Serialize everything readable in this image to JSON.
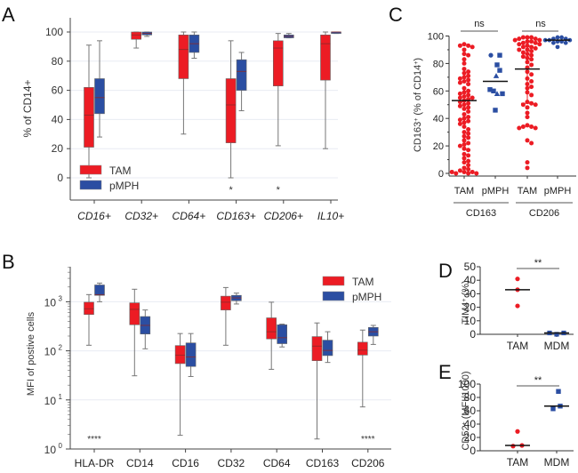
{
  "colors": {
    "tam": "#ec1c24",
    "pmph": "#2b4ea2",
    "grid": "#e8ebf3",
    "whisker": "#777777"
  },
  "chart_data": [
    {
      "panel": "A",
      "type": "box",
      "ylabel": "% of CD14+",
      "ylim": [
        -15,
        110
      ],
      "yticks": [
        0,
        20,
        40,
        60,
        80,
        100
      ],
      "grid": true,
      "legend": {
        "position": "bottom-left",
        "entries": [
          "TAM",
          "pMPH"
        ]
      },
      "categories": [
        "CD16+",
        "CD32+",
        "CD64+",
        "CD163+",
        "CD206+",
        "IL10+"
      ],
      "series": [
        {
          "name": "TAM",
          "boxes": [
            {
              "min": 0,
              "q1": 21,
              "median": 43,
              "q3": 62,
              "max": 91
            },
            {
              "min": 89,
              "q1": 95,
              "median": 98,
              "q3": 100,
              "max": 100
            },
            {
              "min": 30,
              "q1": 68,
              "median": 88,
              "q3": 98,
              "max": 100
            },
            {
              "min": 0,
              "q1": 24,
              "median": 50,
              "q3": 68,
              "max": 94
            },
            {
              "min": 22,
              "q1": 63,
              "median": 89,
              "q3": 94,
              "max": 99
            },
            {
              "min": 20,
              "q1": 67,
              "median": 92,
              "q3": 98,
              "max": 100
            }
          ]
        },
        {
          "name": "pMPH",
          "boxes": [
            {
              "min": 28,
              "q1": 44,
              "median": 55,
              "q3": 68,
              "max": 94
            },
            {
              "min": 97,
              "q1": 98,
              "median": 99,
              "q3": 100,
              "max": 100
            },
            {
              "min": 82,
              "q1": 86,
              "median": 92,
              "q3": 98,
              "max": 100
            },
            {
              "min": 46,
              "q1": 60,
              "median": 73,
              "q3": 81,
              "max": 86
            },
            {
              "min": 96,
              "q1": 96,
              "median": 97,
              "q3": 98,
              "max": 99
            },
            {
              "min": 99,
              "q1": 99,
              "median": 100,
              "q3": 100,
              "max": 100
            }
          ]
        }
      ],
      "annotations": [
        {
          "category": "CD163+",
          "text": "*"
        },
        {
          "category": "CD206+",
          "text": "*"
        }
      ]
    },
    {
      "panel": "B",
      "type": "box",
      "yscale": "log",
      "ylabel": "MFI of postive cells",
      "ylim": [
        1,
        5000
      ],
      "yticks": [
        {
          "value": 1,
          "base": "10",
          "exp": "0"
        },
        {
          "value": 10,
          "base": "10",
          "exp": "1"
        },
        {
          "value": 100,
          "base": "10",
          "exp": "2"
        },
        {
          "value": 1000,
          "base": "10",
          "exp": "3"
        }
      ],
      "grid": true,
      "legend": {
        "position": "top-right",
        "entries": [
          "TAM",
          "pMPH"
        ]
      },
      "categories": [
        "HLA-DR",
        "CD14",
        "CD16",
        "CD32",
        "CD64",
        "CD163",
        "CD206"
      ],
      "series": [
        {
          "name": "TAM",
          "boxes": [
            {
              "min": 130,
              "q1": 550,
              "median": 720,
              "q3": 980,
              "max": 1400
            },
            {
              "min": 31,
              "q1": 340,
              "median": 700,
              "q3": 950,
              "max": 1800
            },
            {
              "min": 1.9,
              "q1": 55,
              "median": 82,
              "q3": 128,
              "max": 225
            },
            {
              "min": 130,
              "q1": 680,
              "median": 980,
              "q3": 1300,
              "max": 1950
            },
            {
              "min": 42,
              "q1": 175,
              "median": 245,
              "q3": 470,
              "max": 980
            },
            {
              "min": 1.6,
              "q1": 63,
              "median": 125,
              "q3": 195,
              "max": 370
            },
            {
              "min": 7.2,
              "q1": 82,
              "median": 103,
              "q3": 150,
              "max": 265
            }
          ]
        },
        {
          "name": "pMPH",
          "boxes": [
            {
              "min": 1000,
              "q1": 1350,
              "median": 1400,
              "q3": 2200,
              "max": 2400
            },
            {
              "min": 110,
              "q1": 220,
              "median": 330,
              "q3": 500,
              "max": 680
            },
            {
              "min": 30,
              "q1": 48,
              "median": 75,
              "q3": 145,
              "max": 225
            },
            {
              "min": 900,
              "q1": 1050,
              "median": 1200,
              "q3": 1350,
              "max": 1500
            },
            {
              "min": 120,
              "q1": 140,
              "median": 185,
              "q3": 340,
              "max": 350
            },
            {
              "min": 58,
              "q1": 80,
              "median": 102,
              "q3": 165,
              "max": 245
            },
            {
              "min": 135,
              "q1": 200,
              "median": 245,
              "q3": 300,
              "max": 330
            }
          ]
        }
      ],
      "annotations": [
        {
          "category": "HLA-DR",
          "text": "****"
        },
        {
          "category": "CD206",
          "text": "****"
        }
      ]
    },
    {
      "panel": "C",
      "type": "scatter",
      "ylabel": "CD163+ (% of CD14+)",
      "ylim": [
        0,
        100
      ],
      "yticks": [
        0,
        20,
        40,
        60,
        80,
        100
      ],
      "categories": [
        "TAM",
        "pMPH",
        "TAM",
        "pMPH"
      ],
      "groups": [
        "CD163",
        "CD206"
      ],
      "comparisons": [
        {
          "label": "ns",
          "group": "CD163"
        },
        {
          "label": "ns",
          "group": "CD206"
        }
      ],
      "series": [
        {
          "name": "CD163 TAM",
          "mean": 53,
          "values": [
            94,
            93,
            93,
            92,
            90,
            87,
            86,
            83,
            80,
            76,
            74,
            73,
            71,
            70,
            69,
            68,
            67,
            66,
            65,
            62,
            60,
            59,
            58,
            57,
            56,
            55,
            55,
            54,
            53,
            52,
            51,
            50,
            49,
            48,
            47,
            45,
            43,
            41,
            40,
            39,
            38,
            37,
            36,
            34,
            32,
            30,
            29,
            27,
            26,
            24,
            22,
            21,
            20,
            18,
            17,
            14,
            13,
            11,
            9,
            8,
            6,
            4,
            3,
            2,
            1,
            1,
            0,
            0,
            0,
            1
          ]
        },
        {
          "name": "CD163 pMPH",
          "mean": 67,
          "values": [
            86,
            86,
            79,
            75,
            71,
            61,
            60,
            58,
            58,
            46
          ]
        },
        {
          "name": "CD206 TAM",
          "mean": 76,
          "sd_low": 51,
          "values": [
            99,
            99,
            99,
            98,
            98,
            97,
            97,
            96,
            96,
            95,
            95,
            94,
            94,
            93,
            92,
            92,
            91,
            90,
            90,
            89,
            88,
            87,
            86,
            85,
            84,
            83,
            81,
            79,
            77,
            74,
            72,
            69,
            67,
            65,
            63,
            62,
            59,
            57,
            52,
            51,
            50,
            50,
            48,
            44,
            41,
            35,
            34,
            34,
            33,
            33,
            24,
            22,
            8,
            4
          ]
        },
        {
          "name": "CD206 pMPH",
          "mean": 97,
          "values": [
            99,
            99,
            98,
            98,
            97,
            97,
            97,
            96,
            96,
            95,
            95,
            92
          ]
        }
      ]
    },
    {
      "panel": "D",
      "type": "scatter",
      "ylabel": "TIM4+ (%)",
      "ylim": [
        0,
        50
      ],
      "yticks": [
        0,
        10,
        20,
        30,
        40,
        50
      ],
      "categories": [
        "TAM",
        "MDM"
      ],
      "comparison": "**",
      "series": [
        {
          "name": "TAM",
          "mean": 33,
          "values": [
            41,
            33,
            21
          ]
        },
        {
          "name": "MDM",
          "mean": 1,
          "values": [
            1,
            1,
            1
          ]
        }
      ]
    },
    {
      "panel": "E",
      "type": "scatter",
      "ylabel": "CD52+ (MFI/1000)",
      "ylim": [
        0,
        100
      ],
      "yticks": [
        0,
        20,
        40,
        60,
        80,
        100
      ],
      "categories": [
        "TAM",
        "MDM"
      ],
      "comparison": "**",
      "series": [
        {
          "name": "TAM",
          "mean": 8,
          "values": [
            29,
            7,
            8
          ]
        },
        {
          "name": "MDM",
          "mean": 67,
          "values": [
            89,
            63,
            67
          ]
        }
      ]
    }
  ],
  "labels": {
    "panelA": "A",
    "panelB": "B",
    "panelC": "C",
    "panelD": "D",
    "panelE": "E",
    "c_ylabel_main": "CD163",
    "c_ylabel_mid": " (% of CD14",
    "c_ylabel_end": ")",
    "sup_plus": "+",
    "d_ylabel_main": "TIM4",
    "d_ylabel_end": " (%)",
    "e_ylabel_main": "CD52",
    "e_ylabel_end": " (MFI/1000)"
  }
}
